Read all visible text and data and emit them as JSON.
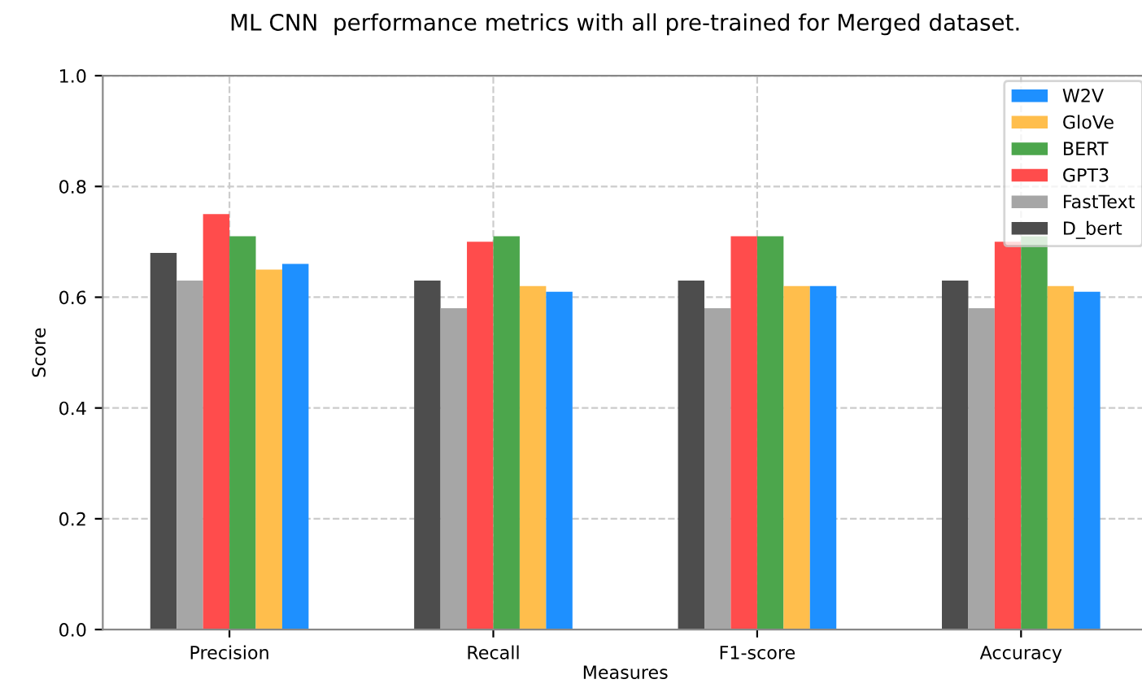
{
  "chart_data": {
    "type": "bar",
    "title": "ML CNN  performance metrics with all pre-trained for Merged dataset.",
    "xlabel": "Measures",
    "ylabel": "Score",
    "categories": [
      "Precision",
      "Recall",
      "F1-score",
      "Accuracy"
    ],
    "series": [
      {
        "name": "D_bert",
        "color": "#4d4d4d",
        "values": [
          0.68,
          0.63,
          0.63,
          0.63
        ]
      },
      {
        "name": "FastText",
        "color": "#a6a6a6",
        "values": [
          0.63,
          0.58,
          0.58,
          0.58
        ]
      },
      {
        "name": "GPT3",
        "color": "#ff4c4c",
        "values": [
          0.75,
          0.7,
          0.71,
          0.7
        ]
      },
      {
        "name": "BERT",
        "color": "#4ca64c",
        "values": [
          0.71,
          0.71,
          0.71,
          0.71
        ]
      },
      {
        "name": "GloVe",
        "color": "#ffbe4c",
        "values": [
          0.65,
          0.62,
          0.62,
          0.62
        ]
      },
      {
        "name": "W2V",
        "color": "#1e90ff",
        "values": [
          0.66,
          0.61,
          0.62,
          0.61
        ]
      }
    ],
    "ylim": [
      0,
      1.0
    ],
    "yticks": [
      {
        "value": 0,
        "label": "0.0"
      },
      0.2,
      0.4,
      0.6,
      0.8,
      {
        "value": 1,
        "label": "1.0"
      }
    ],
    "grid": true,
    "legend": "top right"
  }
}
